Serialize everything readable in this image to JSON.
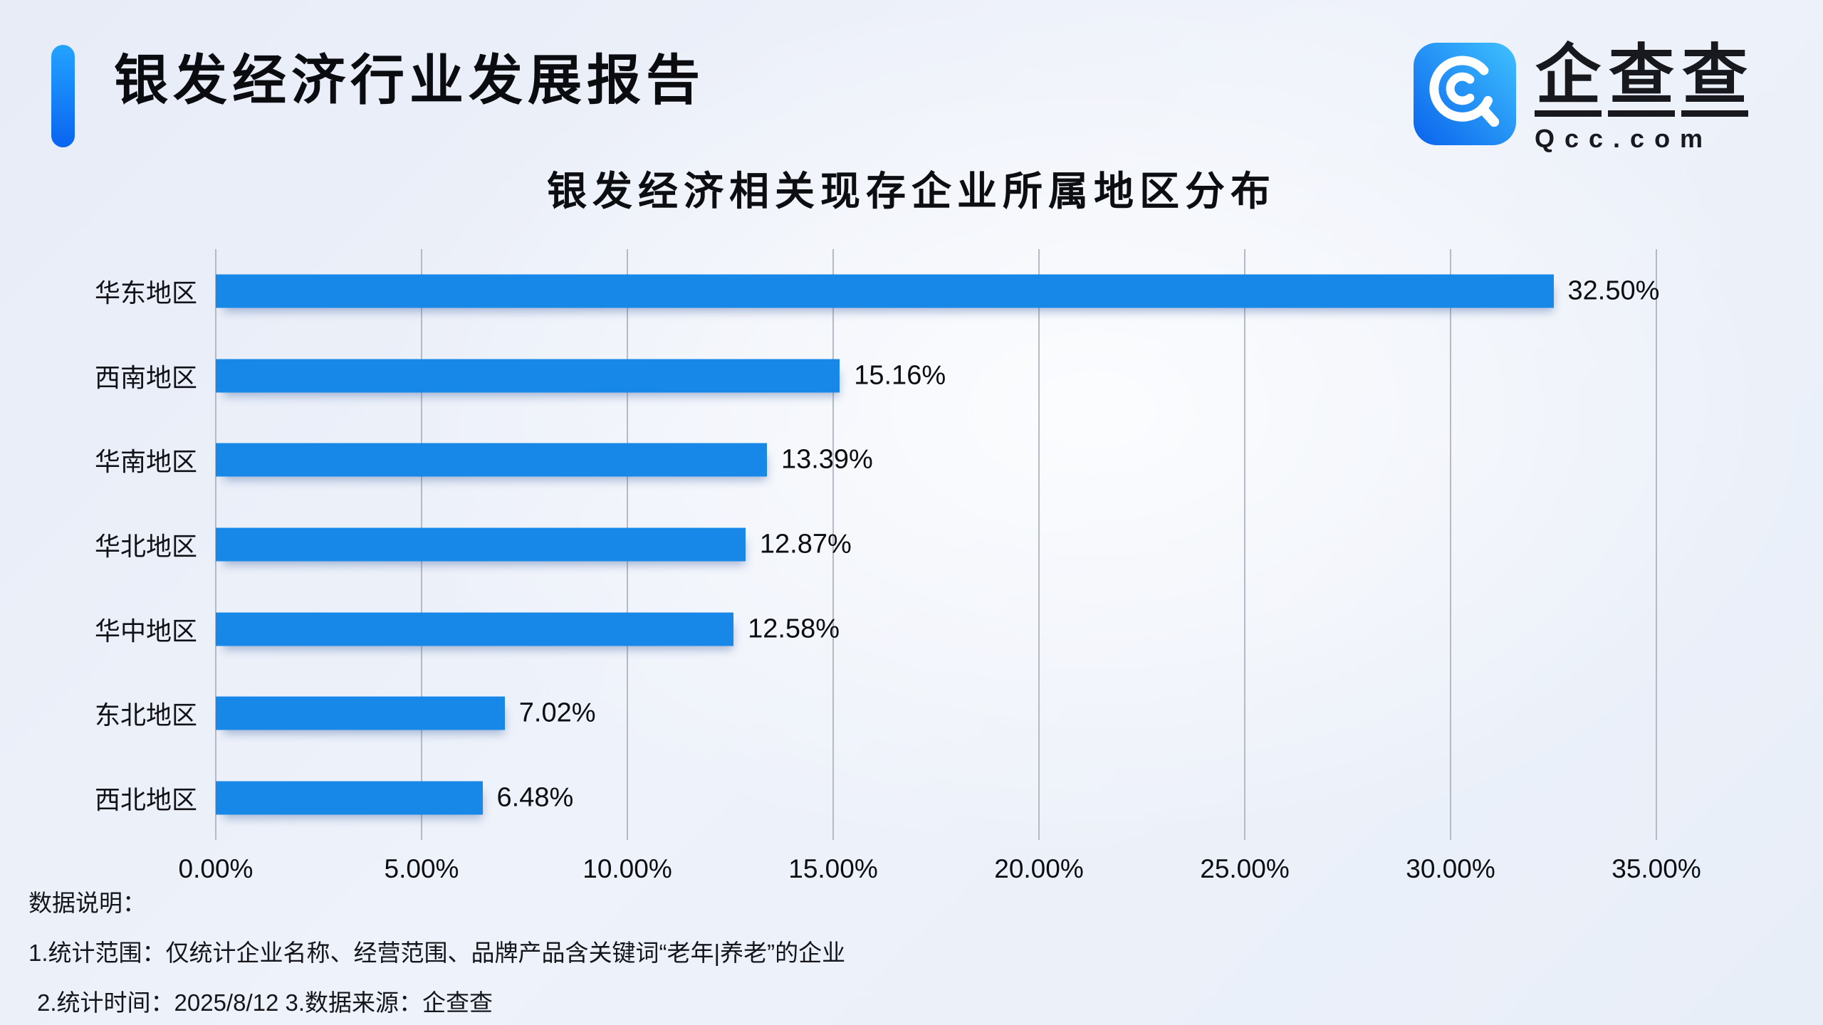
{
  "header": {
    "report_title": "银发经济行业发展报告",
    "brand": {
      "name": "企查查",
      "chars": [
        "企",
        "查",
        "查"
      ],
      "domain": "Qcc.com",
      "icon_gradient": [
        "#3fc1ff",
        "#0a63ec"
      ]
    }
  },
  "chart_data": {
    "type": "bar",
    "orientation": "horizontal",
    "title": "银发经济相关现存企业所属地区分布",
    "categories": [
      "华东地区",
      "西南地区",
      "华南地区",
      "华北地区",
      "华中地区",
      "东北地区",
      "西北地区"
    ],
    "values": [
      32.5,
      15.16,
      13.39,
      12.87,
      12.58,
      7.02,
      6.48
    ],
    "value_labels": [
      "32.50%",
      "15.16%",
      "13.39%",
      "12.87%",
      "12.58%",
      "7.02%",
      "6.48%"
    ],
    "x_ticks": [
      "0.00%",
      "5.00%",
      "10.00%",
      "15.00%",
      "20.00%",
      "25.00%",
      "30.00%",
      "35.00%"
    ],
    "xlim": [
      0,
      35
    ],
    "xlabel": "",
    "ylabel": "",
    "grid": "vertical-only",
    "legend": false,
    "bar_color": "#1787e8",
    "gridline_color": "#b5bac4"
  },
  "notes": {
    "heading": "数据说明：",
    "line1": "1.统计范围：仅统计企业名称、经营范围、品牌产品含关键词“老年|养老”的企业",
    "line2": "2.统计时间：2025/8/12  3.数据来源：企查查"
  }
}
